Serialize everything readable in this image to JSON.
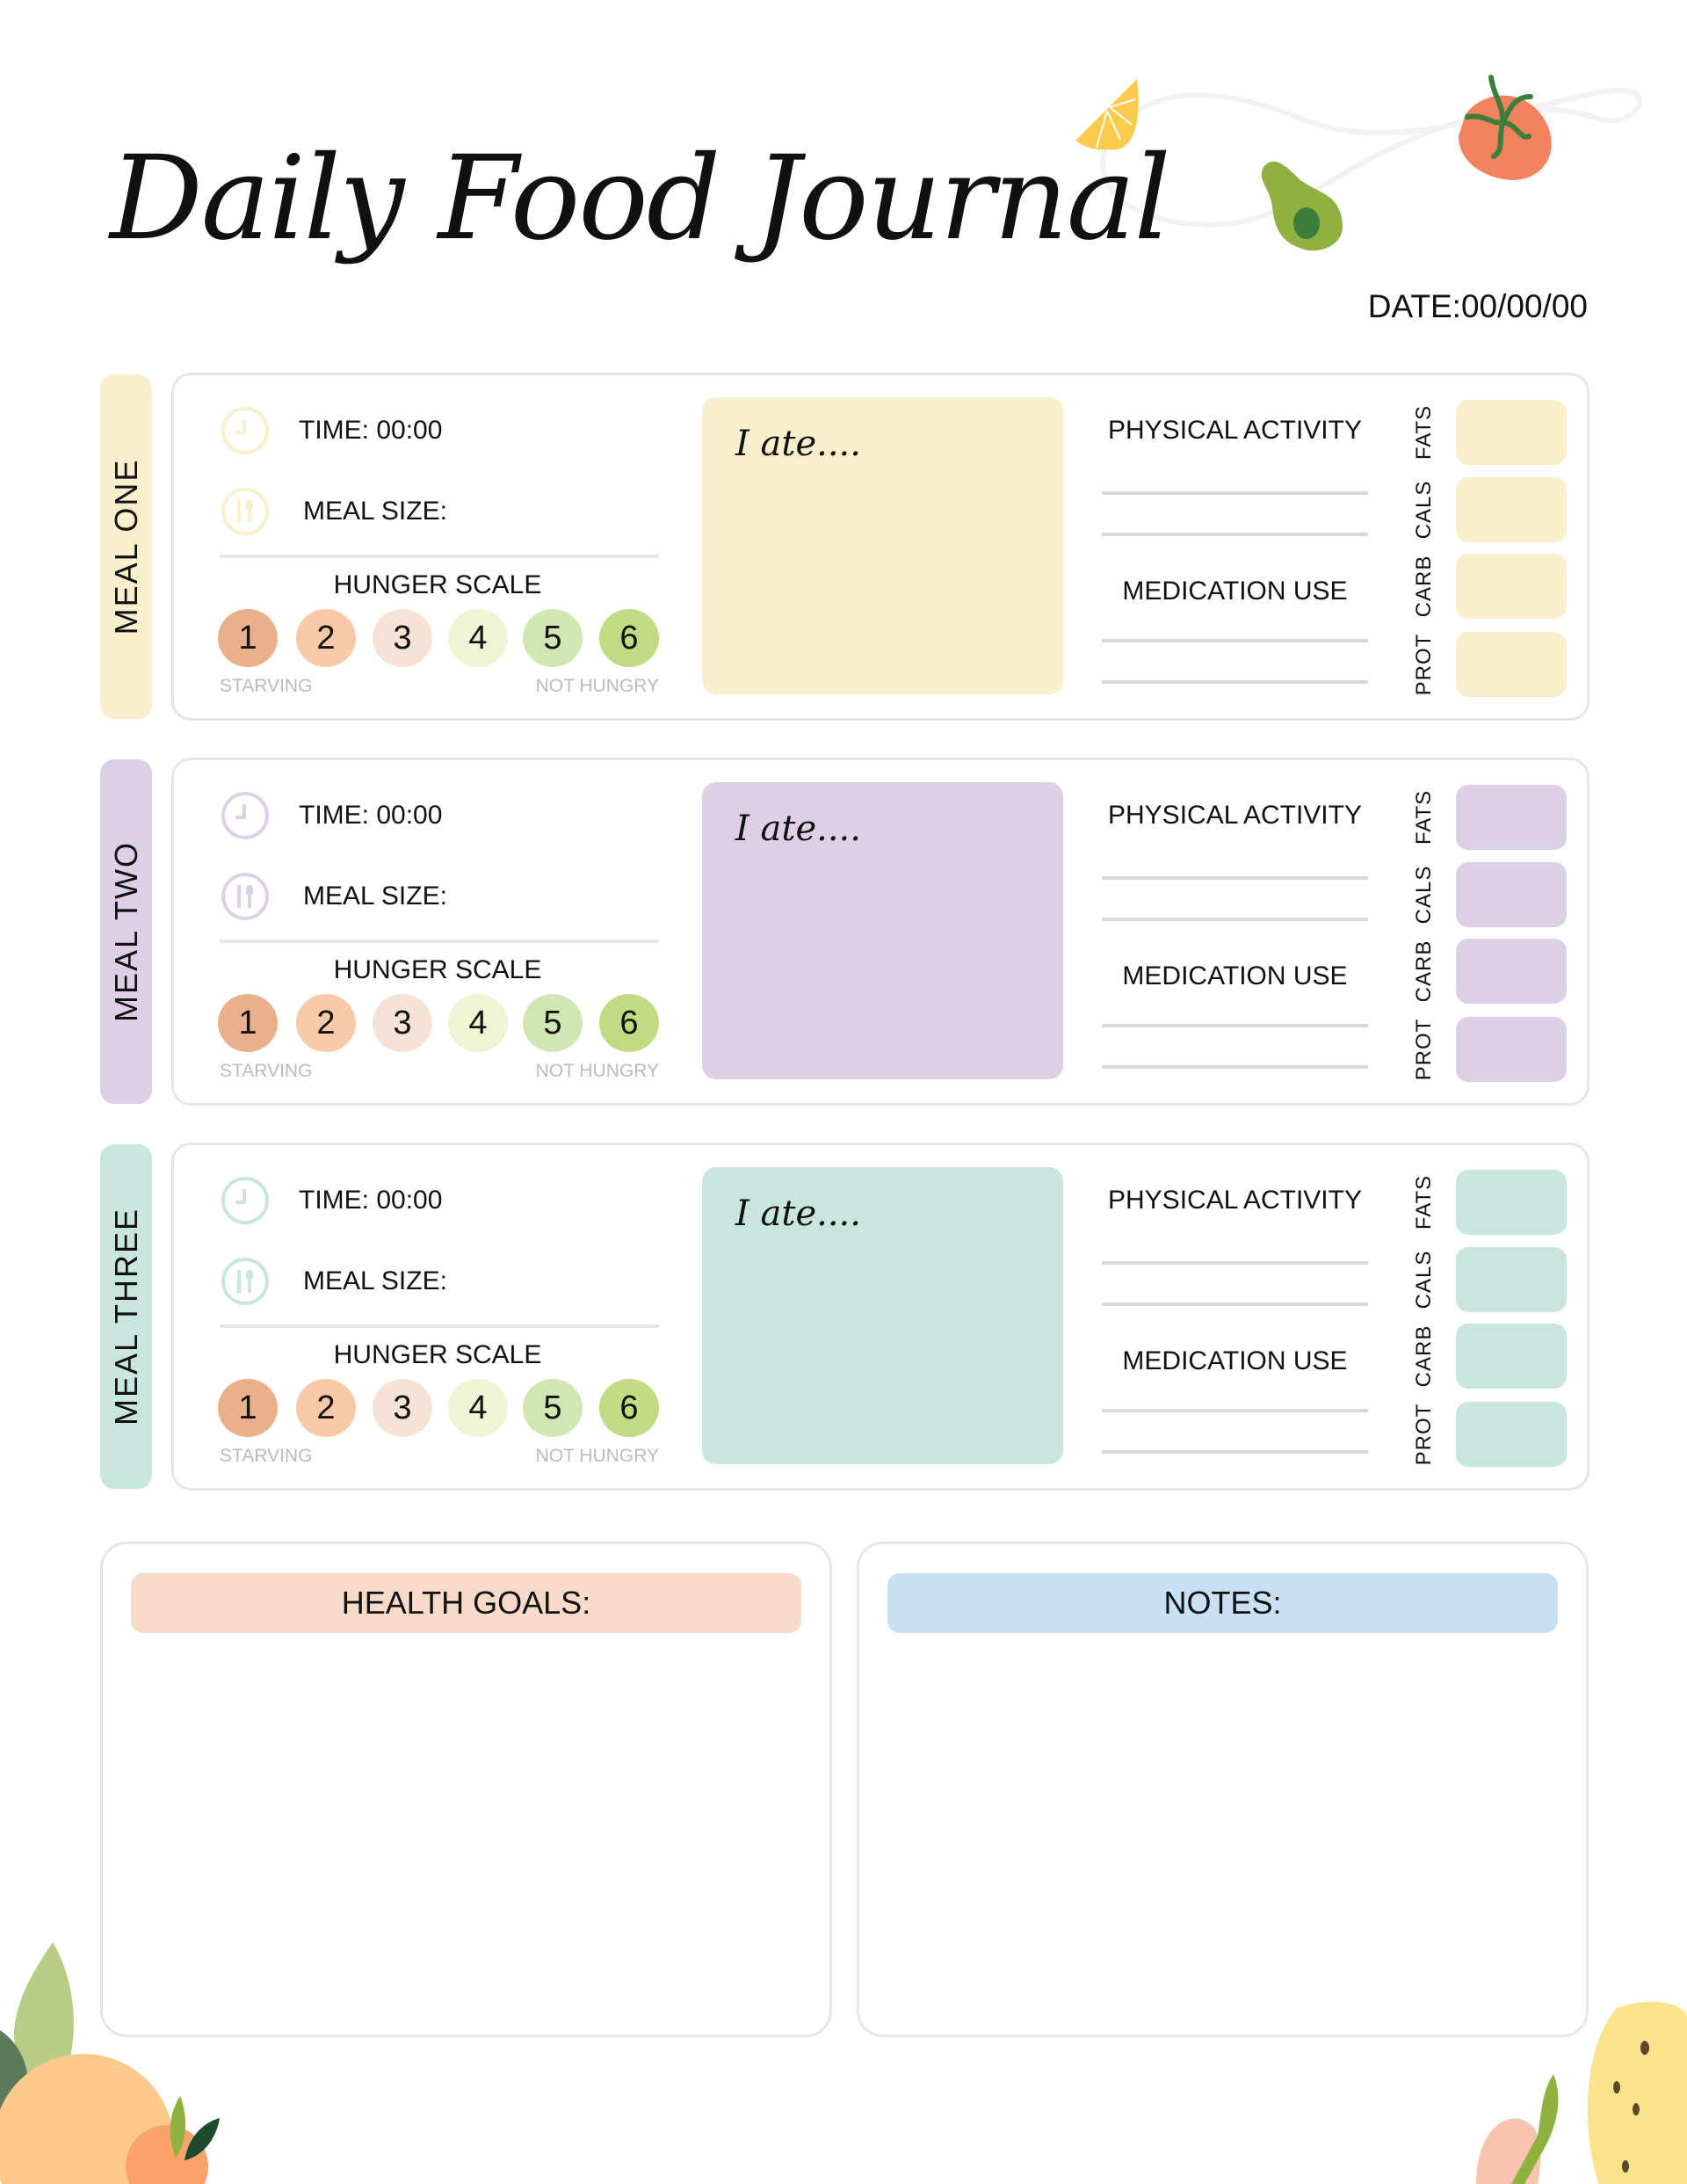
{
  "title": "Daily Food Journal",
  "date_label": "DATE:00/00/00",
  "colors": {
    "meal_one": "#f9efcd",
    "meal_two": "#ddd0e6",
    "meal_three": "#c8e5de",
    "hunger": [
      "#e9b08a",
      "#fac9a7",
      "#f7e3d6",
      "#eef4d4",
      "#d1e7b3",
      "#c0db82"
    ],
    "health_goals": "#f7dac7",
    "notes": "#c8e1f2"
  },
  "meals": [
    {
      "name": "MEAL ONE",
      "color": "#f9efcd",
      "time": "TIME: 00:00",
      "size": "MEAL SIZE:",
      "hunger_title": "HUNGER SCALE",
      "scale": [
        "1",
        "2",
        "3",
        "4",
        "5",
        "6"
      ],
      "low": "STARVING",
      "high": "NOT HUNGRY",
      "ate": "I ate....",
      "activity": "PHYSICAL ACTIVITY",
      "medication": "MEDICATION USE",
      "macros": [
        "FATS",
        "CALS",
        "CARB",
        "PROT"
      ]
    },
    {
      "name": "MEAL TWO",
      "color": "#ddd0e6",
      "time": "TIME: 00:00",
      "size": "MEAL SIZE:",
      "hunger_title": "HUNGER SCALE",
      "scale": [
        "1",
        "2",
        "3",
        "4",
        "5",
        "6"
      ],
      "low": "STARVING",
      "high": "NOT HUNGRY",
      "ate": "I ate....",
      "activity": "PHYSICAL ACTIVITY",
      "medication": "MEDICATION USE",
      "macros": [
        "FATS",
        "CALS",
        "CARB",
        "PROT"
      ]
    },
    {
      "name": "MEAL THREE",
      "color": "#c8e5de",
      "time": "TIME: 00:00",
      "size": "MEAL SIZE:",
      "hunger_title": "HUNGER SCALE",
      "scale": [
        "1",
        "2",
        "3",
        "4",
        "5",
        "6"
      ],
      "low": "STARVING",
      "high": "NOT HUNGRY",
      "ate": "I ate....",
      "activity": "PHYSICAL ACTIVITY",
      "medication": "MEDICATION USE",
      "macros": [
        "FATS",
        "CALS",
        "CARB",
        "PROT"
      ]
    }
  ],
  "icons": {
    "time": "clock-icon",
    "size": "fork-spoon-icon"
  },
  "health_goals": {
    "label": "HEALTH GOALS:"
  },
  "notes": {
    "label": "NOTES:"
  }
}
